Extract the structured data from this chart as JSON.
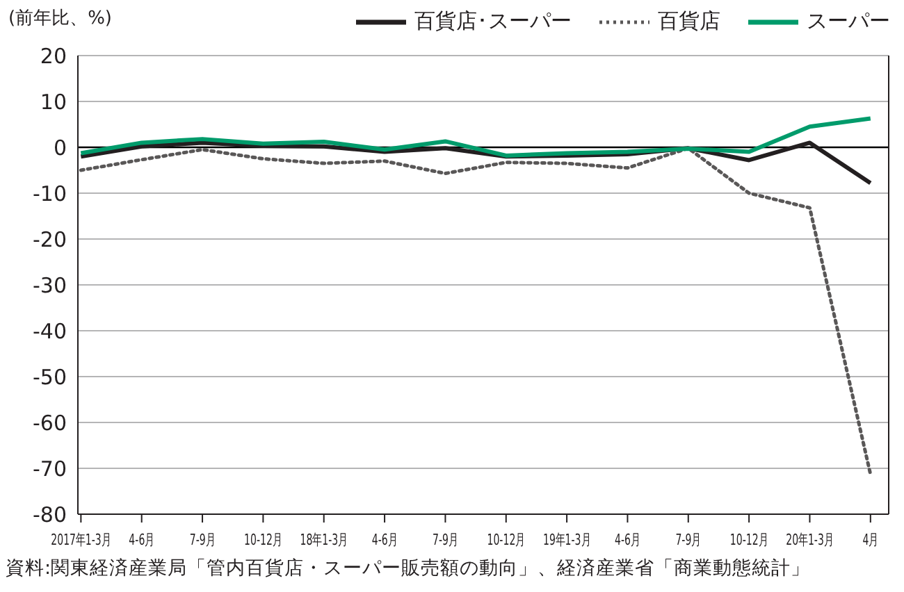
{
  "chart_data": {
    "type": "line",
    "ylabel": "(前年比、%)",
    "categories": [
      "2017年1-3月",
      "4-6月",
      "7-9月",
      "10-12月",
      "18年1-3月",
      "4-6月",
      "7-9月",
      "10-12月",
      "19年1-3月",
      "4-6月",
      "7-9月",
      "10-12月",
      "20年1-3月",
      "4月"
    ],
    "series": [
      {
        "name": "百貨店･スーパー",
        "color": "#231f20",
        "line_style": "solid",
        "values": [
          -2.0,
          0.2,
          1.0,
          0.3,
          0.2,
          -1.0,
          -0.2,
          -2.0,
          -1.8,
          -1.5,
          -0.2,
          -2.8,
          1.0,
          -7.8
        ]
      },
      {
        "name": "百貨店",
        "color": "#595757",
        "line_style": "dotted",
        "values": [
          -5.0,
          -2.7,
          -0.5,
          -2.5,
          -3.5,
          -3.0,
          -5.7,
          -3.3,
          -3.5,
          -4.5,
          -0.2,
          -10.0,
          -13.2,
          -71.3
        ]
      },
      {
        "name": "スーパー",
        "color": "#009b6b",
        "line_style": "solid",
        "values": [
          -1.3,
          1.0,
          1.8,
          0.8,
          1.2,
          -0.5,
          1.3,
          -1.8,
          -1.3,
          -1.0,
          -0.3,
          -1.0,
          4.5,
          6.3
        ]
      }
    ],
    "ylim": [
      -80,
      20
    ],
    "yticks": [
      -80,
      -70,
      -60,
      -50,
      -40,
      -30,
      -20,
      -10,
      0,
      10,
      20
    ],
    "grid": "y",
    "legend": "top right",
    "marker": "none",
    "ref_lines": [
      {
        "axis": "y",
        "value": 0,
        "color": "#000000"
      }
    ],
    "annotations": [
      "資料:関東経済産業局「管内百貨店・スーパー販売額の動向」、経済産業省「商業動態統計」"
    ]
  }
}
